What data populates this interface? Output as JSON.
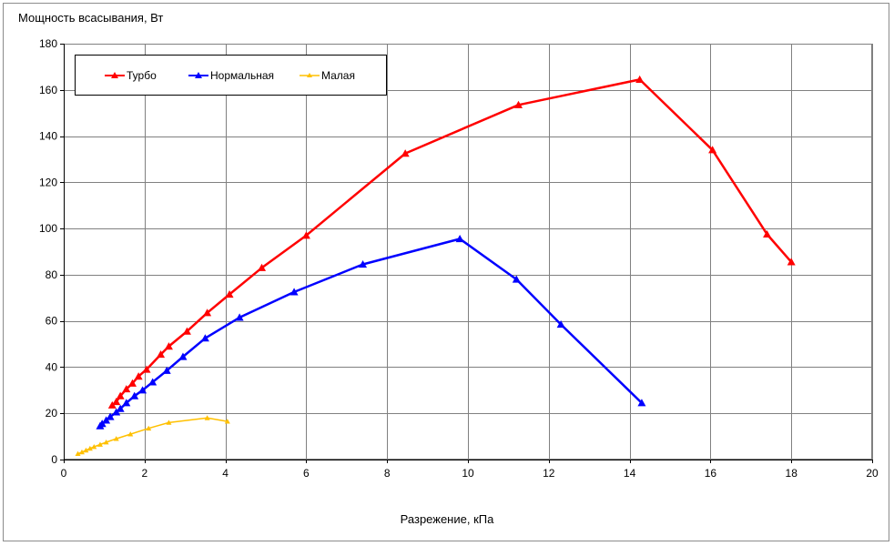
{
  "chart_data": {
    "type": "line",
    "ylabel": "Мощность всасывания, Вт",
    "xlabel": "Разрежение, кПа",
    "xlim": [
      0,
      20
    ],
    "ylim": [
      0,
      180
    ],
    "x_ticks": [
      "0",
      "2",
      "4",
      "6",
      "8",
      "10",
      "12",
      "14",
      "16",
      "18",
      "20"
    ],
    "y_ticks": [
      "0",
      "20",
      "40",
      "60",
      "80",
      "100",
      "120",
      "140",
      "160",
      "180"
    ],
    "grid": true,
    "legend_position": "top-left",
    "series": [
      {
        "name": "Турбо",
        "color": "#ff0000",
        "marker": "triangle",
        "points": [
          [
            1.2,
            23.5
          ],
          [
            1.3,
            25
          ],
          [
            1.4,
            27.5
          ],
          [
            1.55,
            30.5
          ],
          [
            1.7,
            33
          ],
          [
            1.85,
            36
          ],
          [
            2.05,
            39
          ],
          [
            2.4,
            45.5
          ],
          [
            2.6,
            49
          ],
          [
            3.05,
            55.5
          ],
          [
            3.55,
            63.5
          ],
          [
            4.1,
            71.5
          ],
          [
            4.9,
            83
          ],
          [
            6.0,
            97
          ],
          [
            8.45,
            132.5
          ],
          [
            11.25,
            153.5
          ],
          [
            14.25,
            164.5
          ],
          [
            16.05,
            134
          ],
          [
            17.4,
            97.5
          ],
          [
            18.0,
            85.5
          ]
        ]
      },
      {
        "name": "Нормальная",
        "color": "#0000ff",
        "marker": "triangle",
        "points": [
          [
            0.9,
            14.5
          ],
          [
            0.95,
            15.5
          ],
          [
            1.05,
            17
          ],
          [
            1.15,
            18.5
          ],
          [
            1.3,
            20.5
          ],
          [
            1.4,
            22
          ],
          [
            1.55,
            24.5
          ],
          [
            1.75,
            27.5
          ],
          [
            1.95,
            30
          ],
          [
            2.2,
            33.5
          ],
          [
            2.55,
            38.5
          ],
          [
            2.95,
            44.5
          ],
          [
            3.5,
            52.5
          ],
          [
            4.35,
            61.5
          ],
          [
            5.7,
            72.5
          ],
          [
            7.4,
            84.5
          ],
          [
            9.8,
            95.5
          ],
          [
            11.2,
            78
          ],
          [
            12.3,
            58.5
          ],
          [
            14.3,
            24.5
          ]
        ]
      },
      {
        "name": "Малая",
        "color": "#ffc000",
        "marker": "triangle",
        "points": [
          [
            0.35,
            2.5
          ],
          [
            0.45,
            3.2
          ],
          [
            0.55,
            4
          ],
          [
            0.65,
            4.8
          ],
          [
            0.75,
            5.5
          ],
          [
            0.9,
            6.5
          ],
          [
            1.05,
            7.5
          ],
          [
            1.3,
            9
          ],
          [
            1.65,
            11
          ],
          [
            2.1,
            13.5
          ],
          [
            2.6,
            16
          ],
          [
            3.55,
            18
          ],
          [
            4.05,
            16.5
          ]
        ]
      }
    ]
  }
}
